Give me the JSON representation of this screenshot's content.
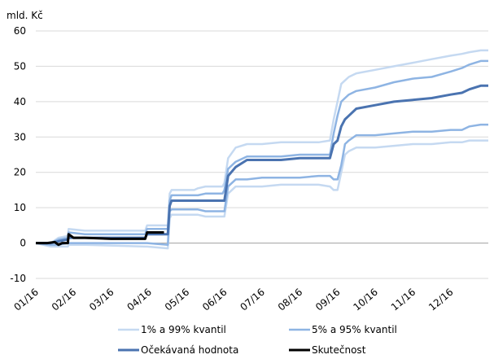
{
  "chart_data": {
    "type": "line",
    "unit_label": "mld. Kč",
    "ylim": [
      -10,
      60
    ],
    "y_ticks": [
      -10,
      0,
      10,
      20,
      30,
      40,
      50,
      60
    ],
    "grid": true,
    "legend_position": "bottom",
    "x_tick_labels": [
      "01/16",
      "02/16",
      "03/16",
      "04/16",
      "05/16",
      "06/16",
      "07/16",
      "08/16",
      "09/16",
      "10/16",
      "11/16",
      "12/16"
    ],
    "series": [
      {
        "name": "1% a 99% kvantil",
        "color": "#c5d9f1",
        "width": 2.5,
        "x": [
          0,
          0.4,
          0.6,
          0.85,
          0.87,
          1.3,
          2.9,
          2.95,
          3.5,
          3.55,
          3.6,
          4.2,
          4.3,
          4.5,
          4.95,
          5,
          5.1,
          5.3,
          5.6,
          6,
          6.5,
          7,
          7.5,
          7.8,
          7.9,
          8,
          8.1,
          8.2,
          8.3,
          8.5,
          9,
          9.5,
          10,
          10.5,
          11,
          11.3,
          11.5,
          11.8,
          12
        ],
        "values": [
          0,
          0,
          1.5,
          2,
          4,
          3.5,
          3.5,
          5,
          5,
          14,
          15,
          15,
          15.5,
          16,
          16,
          17,
          24,
          27,
          28,
          28,
          28.5,
          28.5,
          28.5,
          29,
          35,
          40,
          45,
          46,
          47,
          48,
          49,
          50,
          51,
          52,
          53,
          53.5,
          54,
          54.5,
          54.5
        ],
        "values_lower": [
          0,
          -1,
          -1,
          -1,
          -0.5,
          -0.5,
          -1,
          -1,
          -1.5,
          7,
          8,
          8,
          8,
          7.5,
          7.5,
          7.5,
          14,
          16,
          16,
          16,
          16.5,
          16.5,
          16.5,
          16,
          15,
          15,
          20,
          25,
          26,
          27,
          27,
          27.5,
          28,
          28,
          28.5,
          28.5,
          29,
          29,
          29
        ]
      },
      {
        "name": "5% a 95% kvantil",
        "color": "#8eb4e3",
        "width": 2.5,
        "x": [
          0,
          0.4,
          0.6,
          0.85,
          0.87,
          1.3,
          2.9,
          2.95,
          3.5,
          3.55,
          3.6,
          4.2,
          4.3,
          4.5,
          4.95,
          5,
          5.1,
          5.3,
          5.6,
          6,
          6.5,
          7,
          7.5,
          7.8,
          7.9,
          8,
          8.1,
          8.2,
          8.3,
          8.5,
          9,
          9.5,
          10,
          10.5,
          11,
          11.3,
          11.5,
          11.8,
          12
        ],
        "values": [
          0,
          0,
          1,
          1.5,
          3,
          2.5,
          2.5,
          4,
          4,
          12,
          13.5,
          13.5,
          13.5,
          14,
          14,
          15,
          21,
          23,
          24.5,
          24.5,
          24.5,
          25,
          25,
          25,
          31,
          36,
          40,
          41,
          42,
          43,
          44,
          45.5,
          46.5,
          47,
          48.5,
          49.5,
          50.5,
          51.5,
          51.5
        ],
        "values_lower": [
          0,
          -0.5,
          -0.5,
          0,
          0,
          0,
          0,
          0,
          -0.5,
          9,
          9.5,
          9.5,
          9.5,
          9,
          9,
          9,
          16,
          18,
          18,
          18.5,
          18.5,
          18.5,
          19,
          19,
          18,
          18,
          22,
          28,
          29,
          30.5,
          30.5,
          31,
          31.5,
          31.5,
          32,
          32,
          33,
          33.5,
          33.5
        ]
      },
      {
        "name": "Očekávaná hodnota",
        "color": "#4a73b0",
        "width": 3,
        "x": [
          0,
          0.4,
          0.6,
          0.85,
          0.87,
          1.3,
          2.9,
          2.95,
          3.5,
          3.55,
          3.6,
          4.2,
          4.3,
          4.5,
          4.95,
          5,
          5.1,
          5.3,
          5.6,
          6,
          6.5,
          7,
          7.5,
          7.8,
          7.9,
          8,
          8.1,
          8.2,
          8.3,
          8.5,
          9,
          9.5,
          10,
          10.5,
          11,
          11.3,
          11.5,
          11.8,
          12
        ],
        "values": [
          0,
          0,
          0.5,
          1,
          1.5,
          1.5,
          1.5,
          2.5,
          2.5,
          10.5,
          12,
          12,
          12,
          12,
          12,
          12,
          19,
          21.5,
          23.5,
          23.5,
          23.5,
          24,
          24,
          24,
          28,
          29,
          33,
          35,
          36,
          38,
          39,
          40,
          40.5,
          41,
          42,
          42.5,
          43.5,
          44.5,
          44.5
        ]
      },
      {
        "name": "Skutečnost",
        "color": "#000000",
        "width": 3,
        "x": [
          0,
          0.3,
          0.5,
          0.6,
          0.7,
          0.8,
          0.85,
          0.87,
          1.0,
          1.3,
          2.0,
          2.5,
          2.9,
          2.95,
          3.4
        ],
        "values": [
          0,
          0,
          0.3,
          -0.5,
          0,
          0,
          0,
          2.5,
          1.5,
          1.5,
          1.2,
          1.2,
          1.2,
          3,
          3
        ]
      }
    ]
  }
}
